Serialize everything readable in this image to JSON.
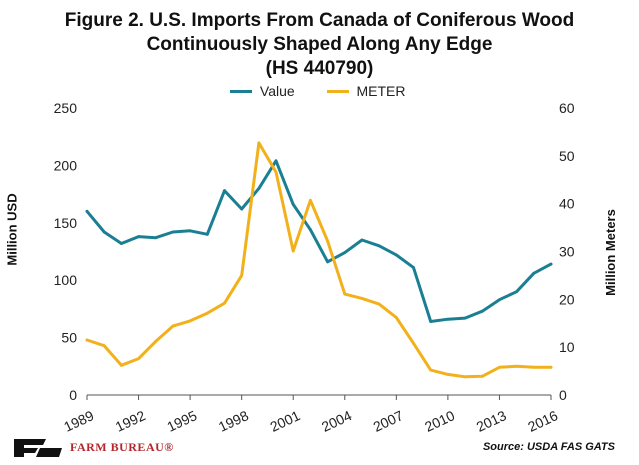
{
  "title_lines": [
    "Figure 2. U.S. Imports From Canada of Coniferous Wood",
    "Continuously Shaped Along Any Edge",
    "(HS 440790)"
  ],
  "source": "Source: USDA FAS GATS",
  "logo_text": "FARM BUREAU®",
  "colors": {
    "value": "#1b7f93",
    "meter": "#f2b11b"
  },
  "chart_data": {
    "type": "line",
    "x": [
      1989,
      1990,
      1991,
      1992,
      1993,
      1994,
      1995,
      1996,
      1997,
      1998,
      1999,
      2000,
      2001,
      2002,
      2003,
      2004,
      2005,
      2006,
      2007,
      2008,
      2009,
      2010,
      2011,
      2012,
      2013,
      2014,
      2015,
      2016
    ],
    "x_ticks": [
      "1989",
      "1992",
      "1995",
      "1998",
      "2001",
      "2004",
      "2007",
      "2010",
      "2013",
      "2016"
    ],
    "xlim": [
      1989,
      2016
    ],
    "legend_position": "top",
    "series": [
      {
        "name": "Value",
        "axis": "left",
        "color": "#1b7f93",
        "values": [
          160,
          142,
          132,
          138,
          137,
          142,
          143,
          140,
          178,
          162,
          180,
          204,
          166,
          144,
          116,
          124,
          135,
          130,
          122,
          111,
          64,
          66,
          67,
          73,
          83,
          90,
          106,
          114
        ]
      },
      {
        "name": "METER",
        "axis": "right",
        "color": "#f2b11b",
        "values": [
          11.5,
          10.3,
          6.2,
          7.6,
          11.2,
          14.4,
          15.5,
          17.1,
          19.2,
          25,
          52.7,
          46.6,
          30.1,
          40.7,
          32.2,
          21.1,
          20.2,
          19,
          16.2,
          10.8,
          5.2,
          4.3,
          3.8,
          3.9,
          5.8,
          6,
          5.8,
          5.8
        ]
      }
    ],
    "y_left": {
      "label": "Million USD",
      "lim": [
        0,
        250
      ],
      "ticks": [
        0,
        50,
        100,
        150,
        200,
        250
      ]
    },
    "y_right": {
      "label": "Million Meters",
      "lim": [
        0,
        60
      ],
      "ticks": [
        0,
        10,
        20,
        30,
        40,
        50,
        60
      ]
    },
    "grid": false
  }
}
